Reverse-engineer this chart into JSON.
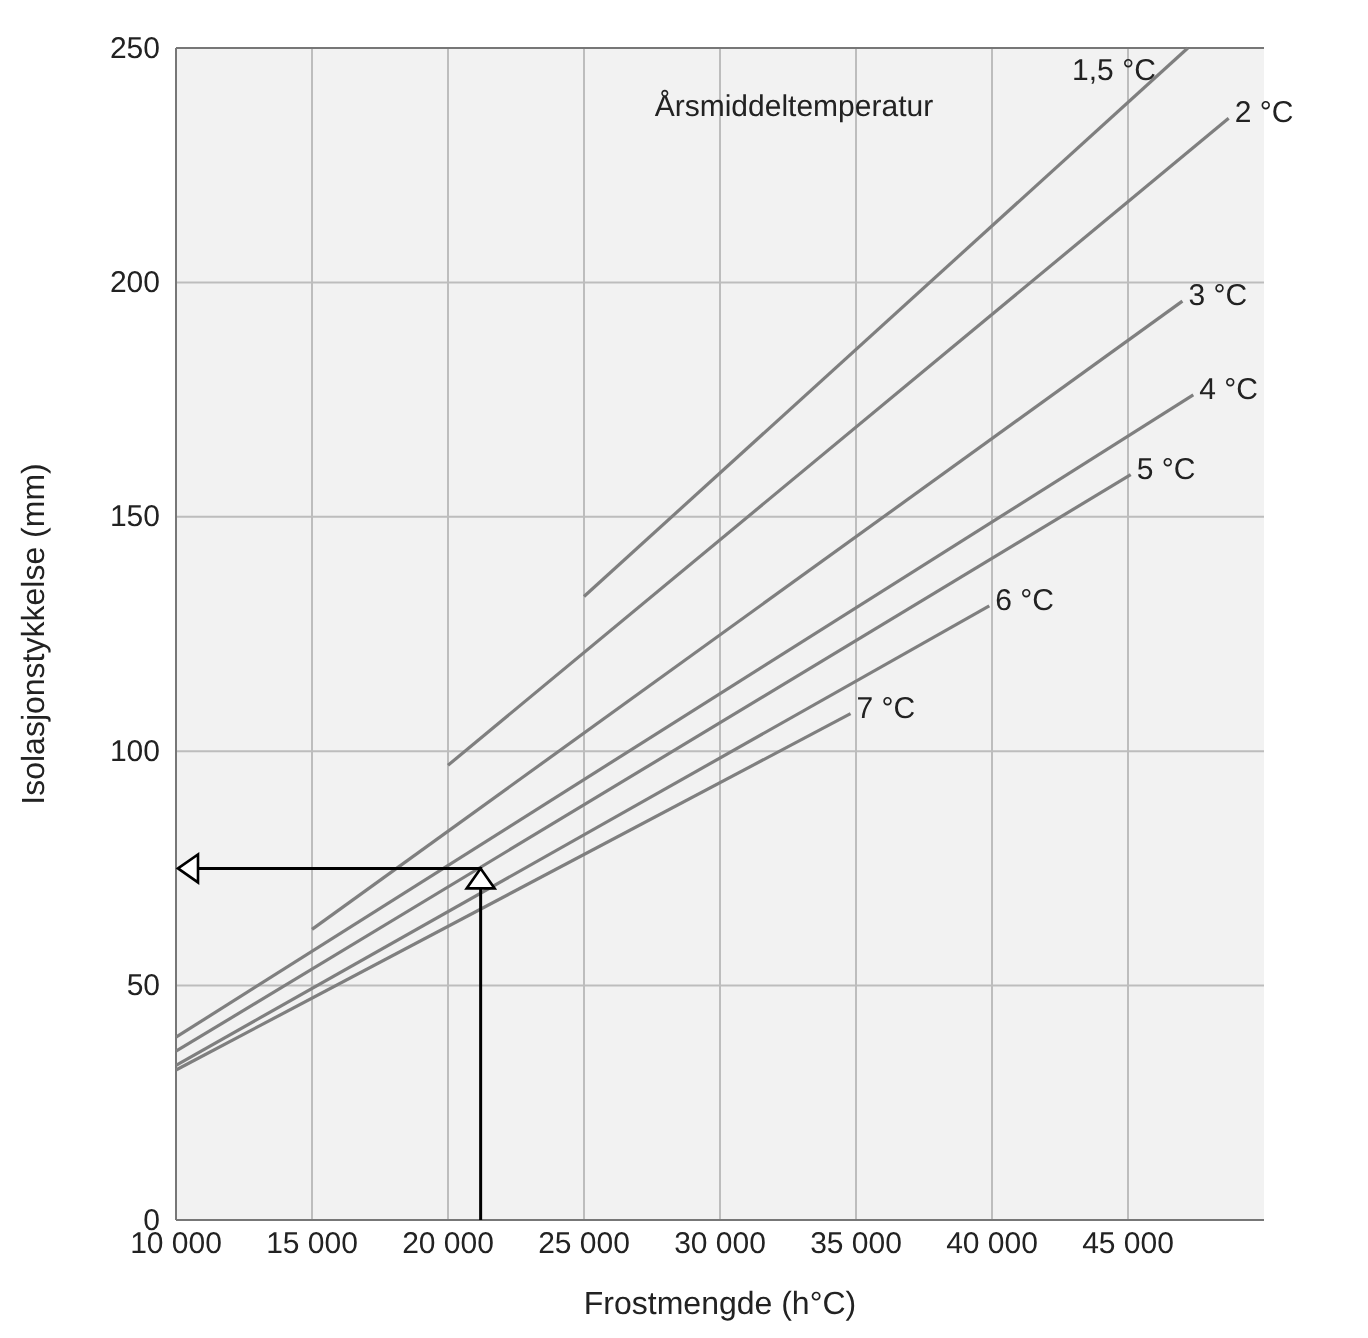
{
  "chart_data": {
    "type": "line",
    "xlabel": "Frostmengde (h°C)",
    "ylabel": "Isolasjonstykkelse (mm)",
    "legend_title": "Årsmiddeltemperatur",
    "xlim": [
      10000,
      50000
    ],
    "ylim": [
      0,
      250
    ],
    "xticks": [
      {
        "value": 10000,
        "label": "10 000"
      },
      {
        "value": 15000,
        "label": "15 000"
      },
      {
        "value": 20000,
        "label": "20 000"
      },
      {
        "value": 25000,
        "label": "25 000"
      },
      {
        "value": 30000,
        "label": "30 000"
      },
      {
        "value": 35000,
        "label": "35 000"
      },
      {
        "value": 40000,
        "label": "40 000"
      },
      {
        "value": 45000,
        "label": "45 000"
      }
    ],
    "yticks": [
      0,
      50,
      100,
      150,
      200,
      250
    ],
    "grid": true,
    "marker": "none",
    "line_style": "solid",
    "series": [
      {
        "name": "1,5 °C",
        "color": "#7f7f7f",
        "x": [
          25000,
          47200
        ],
        "values": [
          133,
          250
        ]
      },
      {
        "name": "2 °C",
        "color": "#7f7f7f",
        "x": [
          20000,
          48700
        ],
        "values": [
          97,
          235
        ]
      },
      {
        "name": "3 °C",
        "color": "#7f7f7f",
        "x": [
          15000,
          47000
        ],
        "values": [
          62,
          196
        ]
      },
      {
        "name": "4 °C",
        "color": "#7f7f7f",
        "x": [
          10000,
          47400
        ],
        "values": [
          39,
          176
        ]
      },
      {
        "name": "5 °C",
        "color": "#7f7f7f",
        "x": [
          10000,
          45100
        ],
        "values": [
          36,
          159
        ]
      },
      {
        "name": "6 °C",
        "color": "#7f7f7f",
        "x": [
          10000,
          39900
        ],
        "values": [
          33,
          131
        ]
      },
      {
        "name": "7 °C",
        "color": "#7f7f7f",
        "x": [
          10000,
          34800
        ],
        "values": [
          32,
          108
        ]
      }
    ]
  }
}
